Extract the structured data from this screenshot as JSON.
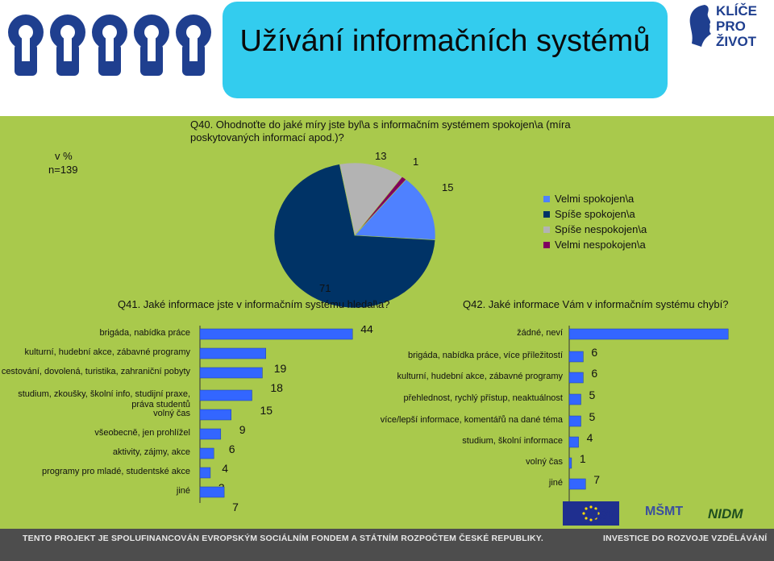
{
  "header": {
    "title": "Užívání informačních systémů"
  },
  "logo_right": {
    "lines": [
      "KLÍČE",
      "PRO",
      "ŽIVOT"
    ]
  },
  "meta": {
    "unit_line1": "v %",
    "unit_line2": "n=139"
  },
  "colors": {
    "title_bg": "#33ccee",
    "panel_bg": "#a9c94c",
    "footer_bg": "#4d4d4d",
    "bar": "#3366ff",
    "pie_light_blue": "#4f81ff",
    "pie_navy": "#003366",
    "pie_gray": "#b3b3b3",
    "pie_purple": "#800060"
  },
  "footer": {
    "left": "TENTO PROJEKT JE SPOLUFINANCOVÁN EVROPSKÝM SOCIÁLNÍM FONDEM A STÁTNÍM ROZPOČTEM ČESKÉ REPUBLIKY.",
    "right": "INVESTICE DO ROZVOJE VZDĚLÁVÁNÍ"
  },
  "sponsor_logos": [
    "esf",
    "MŠMT",
    "NIDM"
  ],
  "chart_data": [
    {
      "type": "pie",
      "title": "Q40. Ohodnoťte do jaké míry jste byl\\a s informačním systémem spokojen\\a (míra poskytovaných informací apod.)?",
      "categories": [
        "Velmi spokojen\\a",
        "Spíše spokojen\\a",
        "Spíše nespokojen\\a",
        "Velmi nespokojen\\a"
      ],
      "values": [
        15,
        71,
        13,
        1
      ],
      "legend_position": "right"
    },
    {
      "type": "bar",
      "orientation": "horizontal",
      "title": "Q41. Jaké informace jste v informačním systému hledal\\a?",
      "categories": [
        "brigáda, nabídka práce",
        "kulturní, hudební akce, zábavné programy",
        "cestování, dovolená, turistika, zahraniční pobyty",
        "studium, zkoušky, školní info, studijní praxe, práva studentů",
        "volný čas",
        "všeobecně, jen prohlížel",
        "aktivity, zájmy, akce",
        "programy pro mladé, studentské akce",
        "jiné"
      ],
      "values": [
        44,
        19,
        18,
        15,
        9,
        6,
        4,
        3,
        7
      ],
      "xlim": [
        0,
        50
      ]
    },
    {
      "type": "bar",
      "orientation": "horizontal",
      "title": "Q42. Jaké informace Vám v informačním systému chybí?",
      "categories": [
        "žádné, neví",
        "brigáda, nabídka práce, více příležitostí",
        "kulturní, hudební akce, zábavné programy",
        "přehlednost, rychlý přístup, neaktuálnost",
        "více/lepší informace, komentářů na dané téma",
        "studium, školní informace",
        "volný čas",
        "jiné"
      ],
      "values": [
        68,
        6,
        6,
        5,
        5,
        4,
        1,
        7
      ],
      "xlim": [
        0,
        70
      ]
    }
  ]
}
